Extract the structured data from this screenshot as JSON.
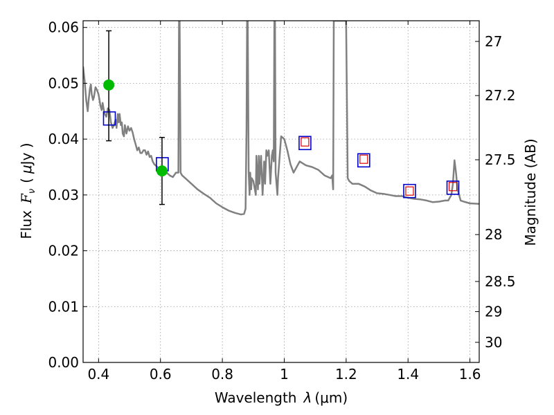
{
  "chart_data": {
    "type": "line",
    "xlabel": "Wavelength",
    "xlabel_symbol": "λ",
    "xlabel_unit": "(μm)",
    "ylabel": "Flux",
    "ylabel_symbol": "F",
    "ylabel_subscript": "ν",
    "ylabel_unit_open": "(",
    "ylabel_unit_mu": "μ",
    "ylabel_unit_rest": "Jy )",
    "y2label": "Magnitude (AB)",
    "xlim": [
      0.35,
      1.63
    ],
    "ylim": [
      0.0,
      0.0612
    ],
    "grid": true,
    "grid_style": "dotted",
    "x_ticks": [
      0.4,
      0.6,
      0.8,
      1.0,
      1.2,
      1.4,
      1.6
    ],
    "x_tick_labels": [
      "0.4",
      "0.6",
      "0.8",
      "1",
      "1.2",
      "1.4",
      "1.6"
    ],
    "y_ticks": [
      0.0,
      0.01,
      0.02,
      0.03,
      0.04,
      0.05,
      0.06
    ],
    "y_tick_labels": [
      "0.00",
      "0.01",
      "0.02",
      "0.03",
      "0.04",
      "0.05",
      "0.06"
    ],
    "y2_ticks": [
      {
        "label": "27",
        "flux": 0.0575
      },
      {
        "label": "27.2",
        "flux": 0.0478
      },
      {
        "label": "27.5",
        "flux": 0.0363
      },
      {
        "label": "28",
        "flux": 0.0229
      },
      {
        "label": "28.5",
        "flux": 0.0145
      },
      {
        "label": "29",
        "flux": 0.0091
      },
      {
        "label": "30",
        "flux": 0.0036
      }
    ],
    "colors": {
      "spectrum": "#808080",
      "observed_box": "#0000cc",
      "model_box": "#dd0000",
      "detection": "#00bb00",
      "errorbar": "#000000",
      "grid": "#999999"
    },
    "series": [
      {
        "kind": "spectrum",
        "x": [
          0.35,
          0.355,
          0.36,
          0.365,
          0.368,
          0.372,
          0.375,
          0.378,
          0.382,
          0.385,
          0.39,
          0.395,
          0.4,
          0.403,
          0.406,
          0.41,
          0.413,
          0.416,
          0.42,
          0.425,
          0.43,
          0.435,
          0.44,
          0.445,
          0.45,
          0.455,
          0.458,
          0.462,
          0.465,
          0.468,
          0.472,
          0.475,
          0.478,
          0.482,
          0.485,
          0.49,
          0.495,
          0.5,
          0.505,
          0.51,
          0.515,
          0.52,
          0.525,
          0.53,
          0.535,
          0.54,
          0.545,
          0.55,
          0.555,
          0.56,
          0.565,
          0.57,
          0.575,
          0.58,
          0.59,
          0.6,
          0.61,
          0.62,
          0.63,
          0.64,
          0.65,
          0.658,
          0.66,
          0.662,
          0.665,
          0.67,
          0.68,
          0.7,
          0.72,
          0.74,
          0.76,
          0.78,
          0.8,
          0.82,
          0.84,
          0.86,
          0.87,
          0.875,
          0.878,
          0.88,
          0.882,
          0.885,
          0.888,
          0.89,
          0.893,
          0.895,
          0.9,
          0.905,
          0.908,
          0.91,
          0.915,
          0.918,
          0.92,
          0.925,
          0.93,
          0.935,
          0.938,
          0.942,
          0.945,
          0.95,
          0.955,
          0.96,
          0.963,
          0.966,
          0.968,
          0.97,
          0.972,
          0.975,
          0.978,
          0.98,
          0.99,
          1.0,
          1.01,
          1.02,
          1.03,
          1.05,
          1.07,
          1.09,
          1.11,
          1.13,
          1.15,
          1.155,
          1.158,
          1.16,
          1.163,
          1.166,
          1.17,
          1.175,
          1.18,
          1.185,
          1.19,
          1.195,
          1.2,
          1.205,
          1.21,
          1.22,
          1.24,
          1.26,
          1.28,
          1.3,
          1.32,
          1.34,
          1.36,
          1.38,
          1.4,
          1.42,
          1.44,
          1.46,
          1.48,
          1.5,
          1.52,
          1.53,
          1.54,
          1.545,
          1.55,
          1.555,
          1.56,
          1.57,
          1.58,
          1.6,
          1.63
        ],
        "y": [
          0.053,
          0.0505,
          0.047,
          0.045,
          0.047,
          0.049,
          0.0498,
          0.048,
          0.047,
          0.0475,
          0.0493,
          0.0488,
          0.048,
          0.047,
          0.046,
          0.0452,
          0.0465,
          0.0455,
          0.0445,
          0.044,
          0.0455,
          0.0452,
          0.043,
          0.042,
          0.0425,
          0.0435,
          0.042,
          0.0445,
          0.043,
          0.0445,
          0.0425,
          0.043,
          0.041,
          0.0405,
          0.0425,
          0.041,
          0.0423,
          0.0415,
          0.042,
          0.0412,
          0.04,
          0.039,
          0.038,
          0.0385,
          0.0375,
          0.0375,
          0.038,
          0.038,
          0.0372,
          0.0378,
          0.0368,
          0.037,
          0.036,
          0.0355,
          0.035,
          0.0345,
          0.034,
          0.034,
          0.0335,
          0.0332,
          0.034,
          0.034,
          0.0612,
          0.0612,
          0.034,
          0.0335,
          0.033,
          0.032,
          0.031,
          0.0302,
          0.0295,
          0.0285,
          0.0278,
          0.0272,
          0.0268,
          0.0265,
          0.0266,
          0.0275,
          0.042,
          0.0612,
          0.0612,
          0.034,
          0.03,
          0.034,
          0.031,
          0.033,
          0.0325,
          0.031,
          0.03,
          0.037,
          0.031,
          0.037,
          0.032,
          0.037,
          0.03,
          0.036,
          0.032,
          0.038,
          0.037,
          0.038,
          0.032,
          0.037,
          0.038,
          0.036,
          0.0612,
          0.0612,
          0.034,
          0.032,
          0.03,
          0.033,
          0.0405,
          0.04,
          0.038,
          0.0355,
          0.034,
          0.036,
          0.0353,
          0.035,
          0.0345,
          0.0335,
          0.033,
          0.0335,
          0.031,
          0.0612,
          0.0612,
          0.0612,
          0.0612,
          0.0612,
          0.0612,
          0.0612,
          0.0612,
          0.0612,
          0.0612,
          0.033,
          0.0325,
          0.032,
          0.032,
          0.0315,
          0.0308,
          0.0303,
          0.0302,
          0.03,
          0.0298,
          0.0298,
          0.0295,
          0.0293,
          0.0292,
          0.029,
          0.0287,
          0.0288,
          0.029,
          0.029,
          0.03,
          0.032,
          0.0362,
          0.034,
          0.031,
          0.029,
          0.0288,
          0.0285,
          0.0284
        ]
      },
      {
        "kind": "observed_boxes",
        "points": [
          {
            "x": 0.435,
            "y": 0.0437
          },
          {
            "x": 0.606,
            "y": 0.0355
          },
          {
            "x": 1.067,
            "y": 0.0393
          },
          {
            "x": 1.257,
            "y": 0.0362
          },
          {
            "x": 1.405,
            "y": 0.0307
          },
          {
            "x": 1.545,
            "y": 0.0313
          }
        ]
      },
      {
        "kind": "model_boxes",
        "points": [
          {
            "x": 1.067,
            "y": 0.0395
          },
          {
            "x": 1.257,
            "y": 0.0364
          },
          {
            "x": 1.405,
            "y": 0.0307
          },
          {
            "x": 1.545,
            "y": 0.0315
          }
        ]
      },
      {
        "kind": "detections",
        "points": [
          {
            "x": 0.433,
            "y": 0.0497,
            "err_low": 0.0397,
            "err_high": 0.0594
          },
          {
            "x": 0.605,
            "y": 0.0343,
            "err_low": 0.0283,
            "err_high": 0.0403
          }
        ]
      }
    ]
  }
}
